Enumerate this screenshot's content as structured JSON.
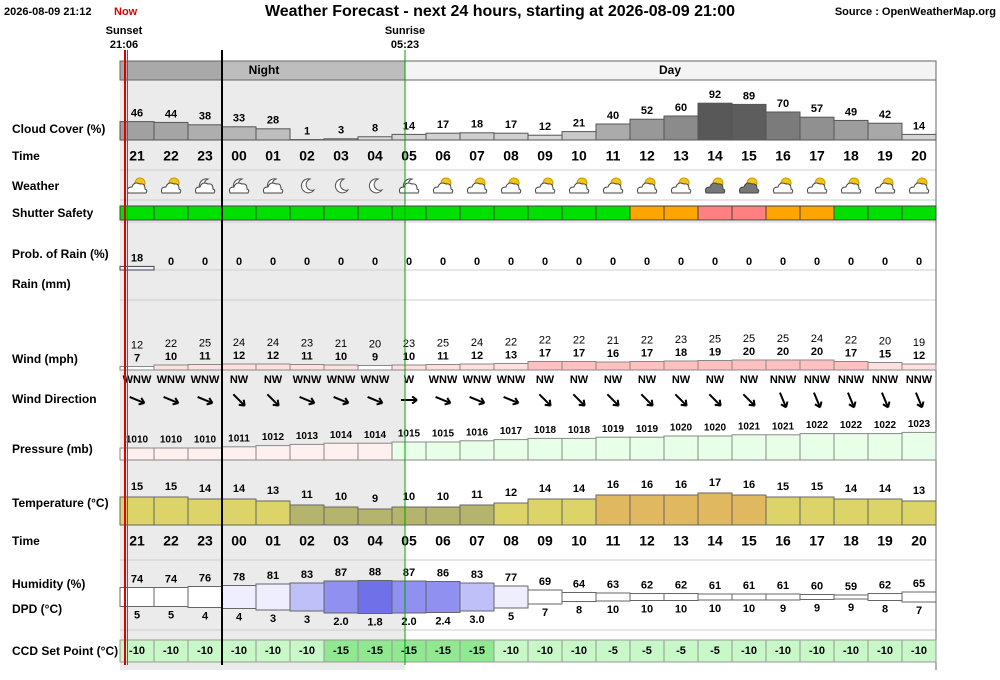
{
  "header": {
    "date": "2026-08-09 21:12",
    "now": "Now",
    "title": "Weather Forecast - next 24 hours, starting at 2026-08-09 21:00",
    "source": "Source : OpenWeatherMap.org"
  },
  "sun": {
    "sunset_label": "Sunset",
    "sunset_time": "21:06",
    "sunrise_label": "Sunrise",
    "sunrise_time": "05:23"
  },
  "periods": {
    "night": "Night",
    "day": "Day"
  },
  "row_labels": {
    "cloud": "Cloud Cover (%)",
    "time": "Time",
    "weather": "Weather",
    "shutter": "Shutter Safety",
    "rain_prob": "Prob. of Rain (%)",
    "rain": "Rain (mm)",
    "wind": "Wind (mph)",
    "wind_dir": "Wind Direction",
    "pressure": "Pressure (mb)",
    "temperature": "Temperature (°C)",
    "time2": "Time",
    "humidity": "Humidity (%)",
    "dpd": "DPD (°C)",
    "ccd": "CCD Set Point (°C)"
  },
  "hours": [
    "21",
    "22",
    "23",
    "00",
    "01",
    "02",
    "03",
    "04",
    "05",
    "06",
    "07",
    "08",
    "09",
    "10",
    "11",
    "12",
    "13",
    "14",
    "15",
    "16",
    "17",
    "18",
    "19",
    "20"
  ],
  "cloud_cover": [
    46,
    44,
    38,
    33,
    28,
    1,
    3,
    8,
    14,
    17,
    18,
    17,
    12,
    21,
    40,
    52,
    60,
    92,
    89,
    70,
    57,
    49,
    42,
    14
  ],
  "shutter_safety": [
    "#00e000",
    "#00e000",
    "#00e000",
    "#00e000",
    "#00e000",
    "#00e000",
    "#00e000",
    "#00e000",
    "#00e000",
    "#00e000",
    "#00e000",
    "#00e000",
    "#00e000",
    "#00e000",
    "#00e000",
    "#ffa500",
    "#ffa500",
    "#ff8080",
    "#ff8080",
    "#ffa500",
    "#ffa500",
    "#00e000",
    "#00e000",
    "#00e000"
  ],
  "rain_probability": [
    18,
    0,
    0,
    0,
    0,
    0,
    0,
    0,
    0,
    0,
    0,
    0,
    0,
    0,
    0,
    0,
    0,
    0,
    0,
    0,
    0,
    0,
    0,
    0
  ],
  "wind_gust": [
    12,
    22,
    25,
    24,
    24,
    23,
    21,
    20,
    23,
    25,
    24,
    22,
    22,
    22,
    21,
    22,
    23,
    25,
    25,
    25,
    24,
    22,
    20,
    19
  ],
  "wind_speed": [
    7,
    10,
    11,
    12,
    12,
    11,
    10,
    9,
    10,
    11,
    12,
    13,
    17,
    17,
    16,
    17,
    18,
    19,
    20,
    20,
    20,
    17,
    15,
    12
  ],
  "wind_direction": [
    "WNW",
    "WNW",
    "WNW",
    "NW",
    "NW",
    "WNW",
    "WNW",
    "WNW",
    "W",
    "WNW",
    "WNW",
    "WNW",
    "NW",
    "NW",
    "NW",
    "NW",
    "NW",
    "NW",
    "NW",
    "NNW",
    "NNW",
    "NNW",
    "NNW",
    "NNW"
  ],
  "pressure": [
    1010,
    1010,
    1010,
    1011,
    1012,
    1013,
    1014,
    1014,
    1015,
    1015,
    1016,
    1017,
    1018,
    1018,
    1019,
    1019,
    1020,
    1020,
    1021,
    1021,
    1022,
    1022,
    1022,
    1023
  ],
  "temperature": [
    15,
    15,
    14,
    14,
    13,
    11,
    10,
    9,
    10,
    10,
    11,
    12,
    14,
    14,
    16,
    16,
    16,
    17,
    16,
    15,
    15,
    14,
    14,
    13
  ],
  "humidity": [
    74,
    74,
    76,
    78,
    81,
    83,
    87,
    88,
    87,
    86,
    83,
    77,
    69,
    64,
    63,
    62,
    62,
    61,
    61,
    61,
    60,
    59,
    62,
    65
  ],
  "dpd": [
    "5",
    "5",
    "4",
    "4",
    "3",
    "3",
    "2.0",
    "1.8",
    "2.0",
    "2.4",
    "3.0",
    "5",
    "7",
    "8",
    "10",
    "10",
    "10",
    "10",
    "10",
    "9",
    "9",
    "9",
    "8",
    "7"
  ],
  "ccd_set_point": [
    -10,
    -10,
    -10,
    -10,
    -10,
    -10,
    -15,
    -15,
    -15,
    -15,
    -15,
    -10,
    -10,
    -10,
    -5,
    -5,
    -5,
    -5,
    -10,
    -10,
    -10,
    -10,
    -10,
    -10
  ]
}
